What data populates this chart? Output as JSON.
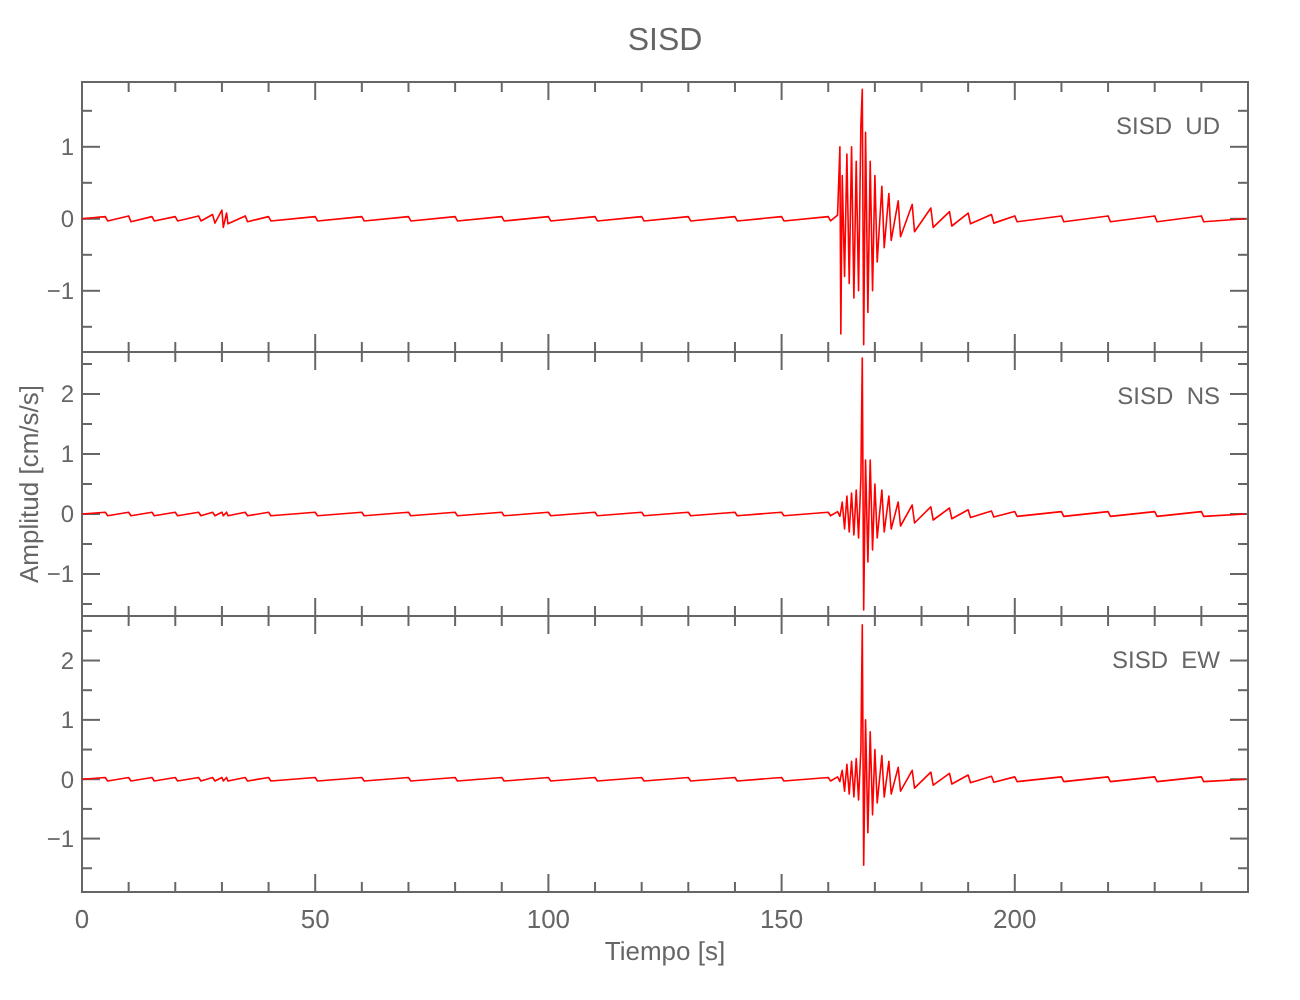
{
  "chart_data": [
    {
      "type": "line",
      "title": "SISD",
      "annotations": [
        "SISD  UD"
      ],
      "xlim": [
        0,
        250
      ],
      "ylim": [
        -1.85,
        1.9
      ],
      "tick_labels": "y",
      "xticks": [
        0,
        {
          "value": 10,
          "label": null
        },
        {
          "value": 20,
          "label": null
        },
        {
          "value": 30,
          "label": null
        },
        {
          "value": 40,
          "label": null
        },
        50,
        {
          "value": 60,
          "label": null
        },
        {
          "value": 70,
          "label": null
        },
        {
          "value": 80,
          "label": null
        },
        {
          "value": 90,
          "label": null
        },
        100,
        {
          "value": 110,
          "label": null
        },
        {
          "value": 120,
          "label": null
        },
        {
          "value": 130,
          "label": null
        },
        {
          "value": 140,
          "label": null
        },
        150,
        {
          "value": 160,
          "label": null
        },
        {
          "value": 170,
          "label": null
        },
        {
          "value": 180,
          "label": null
        },
        {
          "value": 190,
          "label": null
        },
        200,
        {
          "value": 210,
          "label": null
        },
        {
          "value": 220,
          "label": null
        },
        {
          "value": 230,
          "label": null
        },
        {
          "value": 240,
          "label": null
        }
      ],
      "yticks": [
        {
          "value": -1.5,
          "label": null
        },
        {
          "value": -1,
          "label": "−1"
        },
        {
          "value": -0.5,
          "label": null
        },
        0,
        {
          "value": 0.5,
          "label": null
        },
        1,
        {
          "value": 1.5,
          "label": null
        }
      ],
      "x": [
        0,
        5,
        5.5,
        10,
        10.5,
        15,
        15.5,
        20,
        20.5,
        25,
        25.5,
        28,
        28.5,
        30,
        30.3,
        31,
        31.3,
        35,
        35.5,
        40,
        40.5,
        50,
        50.5,
        60,
        60.5,
        70,
        70.5,
        80,
        80.5,
        90,
        90.5,
        100,
        100.5,
        110,
        110.5,
        120,
        120.5,
        130,
        130.5,
        140,
        140.5,
        150,
        150.5,
        160,
        160.5,
        162,
        162.5,
        162.7,
        163,
        163.5,
        164,
        164.5,
        165,
        165.5,
        166,
        166.5,
        167,
        167.3,
        167.6,
        168,
        168.5,
        169,
        169.5,
        170,
        170.5,
        171.5,
        172,
        173,
        173.5,
        175,
        175.5,
        178,
        178.5,
        182,
        182.5,
        186,
        186.5,
        190,
        190.5,
        195,
        195.5,
        200,
        200.5,
        210,
        210.5,
        220,
        220.5,
        230,
        230.5,
        240,
        240.5,
        249.5
      ],
      "series": [
        {
          "color": "#ff0000",
          "values": [
            0,
            0.03,
            -0.03,
            0.04,
            -0.04,
            0.03,
            -0.03,
            0.03,
            -0.03,
            0.04,
            -0.03,
            0.06,
            -0.06,
            0.12,
            -0.12,
            0.08,
            -0.07,
            0.04,
            -0.04,
            0.03,
            -0.03,
            0.03,
            -0.03,
            0.03,
            -0.03,
            0.03,
            -0.03,
            0.03,
            -0.03,
            0.03,
            -0.03,
            0.03,
            -0.03,
            0.03,
            -0.03,
            0.03,
            -0.03,
            0.03,
            -0.03,
            0.03,
            -0.03,
            0.03,
            -0.03,
            0.03,
            -0.03,
            0.05,
            1.0,
            -1.6,
            0.6,
            -0.8,
            0.9,
            -0.9,
            1.0,
            -1.1,
            0.8,
            -1.0,
            1.3,
            1.8,
            -1.75,
            1.2,
            -1.3,
            0.8,
            -1.0,
            0.6,
            -0.6,
            0.45,
            -0.4,
            0.35,
            -0.3,
            0.25,
            -0.25,
            0.2,
            -0.18,
            0.15,
            -0.12,
            0.1,
            -0.1,
            0.08,
            -0.07,
            0.06,
            -0.06,
            0.04,
            -0.04,
            0.04,
            -0.04,
            0.04,
            -0.04,
            0.04,
            -0.04,
            0.04,
            -0.04,
            0
          ]
        }
      ]
    },
    {
      "type": "line",
      "ylabel": "Amplitud [cm/s/s]",
      "annotations": [
        "SISD  NS"
      ],
      "xlim": [
        0,
        250
      ],
      "ylim": [
        -1.7,
        2.7
      ],
      "tick_labels": "y",
      "xticks": [
        0,
        {
          "value": 10,
          "label": null
        },
        {
          "value": 20,
          "label": null
        },
        {
          "value": 30,
          "label": null
        },
        {
          "value": 40,
          "label": null
        },
        50,
        {
          "value": 60,
          "label": null
        },
        {
          "value": 70,
          "label": null
        },
        {
          "value": 80,
          "label": null
        },
        {
          "value": 90,
          "label": null
        },
        100,
        {
          "value": 110,
          "label": null
        },
        {
          "value": 120,
          "label": null
        },
        {
          "value": 130,
          "label": null
        },
        {
          "value": 140,
          "label": null
        },
        150,
        {
          "value": 160,
          "label": null
        },
        {
          "value": 170,
          "label": null
        },
        {
          "value": 180,
          "label": null
        },
        {
          "value": 190,
          "label": null
        },
        200,
        {
          "value": 210,
          "label": null
        },
        {
          "value": 220,
          "label": null
        },
        {
          "value": 230,
          "label": null
        },
        {
          "value": 240,
          "label": null
        }
      ],
      "yticks": [
        {
          "value": -1.5,
          "label": null
        },
        {
          "value": -1,
          "label": "−1"
        },
        {
          "value": -0.5,
          "label": null
        },
        0,
        {
          "value": 0.5,
          "label": null
        },
        1,
        {
          "value": 1.5,
          "label": null
        },
        2,
        {
          "value": 2.5,
          "label": null
        }
      ],
      "x": [
        0,
        5,
        5.5,
        10,
        10.5,
        15,
        15.5,
        20,
        20.5,
        25,
        25.5,
        28,
        28.5,
        30,
        30.3,
        31,
        31.3,
        35,
        35.5,
        40,
        40.5,
        50,
        50.5,
        60,
        60.5,
        70,
        70.5,
        80,
        80.5,
        90,
        90.5,
        100,
        100.5,
        110,
        110.5,
        120,
        120.5,
        130,
        130.5,
        140,
        140.5,
        150,
        150.5,
        160,
        160.5,
        162,
        162.5,
        162.7,
        163,
        163.5,
        164,
        164.5,
        165,
        165.5,
        166,
        166.5,
        167,
        167.3,
        167.6,
        168,
        168.5,
        169,
        169.5,
        170,
        170.5,
        171.5,
        172,
        173,
        173.5,
        175,
        175.5,
        178,
        178.5,
        182,
        182.5,
        186,
        186.5,
        190,
        190.5,
        195,
        195.5,
        200,
        200.5,
        210,
        210.5,
        220,
        220.5,
        230,
        230.5,
        240,
        240.5,
        249.5
      ],
      "series": [
        {
          "color": "#ff0000",
          "values": [
            0,
            0.03,
            -0.03,
            0.03,
            -0.03,
            0.03,
            -0.03,
            0.03,
            -0.03,
            0.03,
            -0.03,
            0.03,
            -0.03,
            0.03,
            -0.03,
            0.03,
            -0.03,
            0.03,
            -0.03,
            0.03,
            -0.03,
            0.03,
            -0.03,
            0.03,
            -0.03,
            0.03,
            -0.03,
            0.03,
            -0.03,
            0.03,
            -0.03,
            0.03,
            -0.03,
            0.03,
            -0.03,
            0.03,
            -0.03,
            0.03,
            -0.03,
            0.03,
            -0.03,
            0.03,
            -0.03,
            0.03,
            -0.03,
            0.04,
            -0.04,
            0.05,
            0.2,
            -0.25,
            0.3,
            -0.3,
            0.35,
            -0.35,
            0.4,
            -0.4,
            0.6,
            2.6,
            -1.6,
            0.9,
            -0.8,
            0.9,
            -0.6,
            0.5,
            -0.4,
            0.4,
            -0.3,
            0.3,
            -0.25,
            0.2,
            -0.2,
            0.15,
            -0.15,
            0.12,
            -0.1,
            0.1,
            -0.08,
            0.07,
            -0.06,
            0.05,
            -0.05,
            0.04,
            -0.04,
            0.04,
            -0.04,
            0.04,
            -0.04,
            0.04,
            -0.04,
            0.04,
            -0.04,
            0
          ]
        }
      ]
    },
    {
      "type": "line",
      "xlabel": "Tiempo [s]",
      "annotations": [
        "SISD  EW"
      ],
      "xlim": [
        0,
        250
      ],
      "ylim": [
        -1.9,
        2.75
      ],
      "xticks": [
        0,
        {
          "value": 10,
          "label": null
        },
        {
          "value": 20,
          "label": null
        },
        {
          "value": 30,
          "label": null
        },
        {
          "value": 40,
          "label": null
        },
        50,
        {
          "value": 60,
          "label": null
        },
        {
          "value": 70,
          "label": null
        },
        {
          "value": 80,
          "label": null
        },
        {
          "value": 90,
          "label": null
        },
        100,
        {
          "value": 110,
          "label": null
        },
        {
          "value": 120,
          "label": null
        },
        {
          "value": 130,
          "label": null
        },
        {
          "value": 140,
          "label": null
        },
        150,
        {
          "value": 160,
          "label": null
        },
        {
          "value": 170,
          "label": null
        },
        {
          "value": 180,
          "label": null
        },
        {
          "value": 190,
          "label": null
        },
        200,
        {
          "value": 210,
          "label": null
        },
        {
          "value": 220,
          "label": null
        },
        {
          "value": 230,
          "label": null
        },
        {
          "value": 240,
          "label": null
        }
      ],
      "yticks": [
        {
          "value": -1.5,
          "label": null
        },
        {
          "value": -1,
          "label": "−1"
        },
        {
          "value": -0.5,
          "label": null
        },
        0,
        {
          "value": 0.5,
          "label": null
        },
        1,
        {
          "value": 1.5,
          "label": null
        },
        2,
        {
          "value": 2.5,
          "label": null
        }
      ],
      "x": [
        0,
        5,
        5.5,
        10,
        10.5,
        15,
        15.5,
        20,
        20.5,
        25,
        25.5,
        28,
        28.5,
        30,
        30.3,
        31,
        31.3,
        35,
        35.5,
        40,
        40.5,
        50,
        50.5,
        60,
        60.5,
        70,
        70.5,
        80,
        80.5,
        90,
        90.5,
        100,
        100.5,
        110,
        110.5,
        120,
        120.5,
        130,
        130.5,
        140,
        140.5,
        150,
        150.5,
        160,
        160.5,
        162,
        162.5,
        162.7,
        163,
        163.5,
        164,
        164.5,
        165,
        165.5,
        166,
        166.5,
        167,
        167.3,
        167.6,
        168,
        168.5,
        169,
        169.5,
        170,
        170.5,
        171.5,
        172,
        173,
        173.5,
        175,
        175.5,
        178,
        178.5,
        182,
        182.5,
        186,
        186.5,
        190,
        190.5,
        195,
        195.5,
        200,
        200.5,
        210,
        210.5,
        220,
        220.5,
        230,
        230.5,
        240,
        240.5,
        249.5
      ],
      "series": [
        {
          "color": "#ff0000",
          "values": [
            0,
            0.03,
            -0.03,
            0.03,
            -0.03,
            0.03,
            -0.03,
            0.03,
            -0.03,
            0.03,
            -0.03,
            0.03,
            -0.03,
            0.03,
            -0.03,
            0.03,
            -0.03,
            0.03,
            -0.03,
            0.03,
            -0.03,
            0.03,
            -0.03,
            0.03,
            -0.03,
            0.03,
            -0.03,
            0.03,
            -0.03,
            0.03,
            -0.03,
            0.03,
            -0.03,
            0.03,
            -0.03,
            0.03,
            -0.03,
            0.03,
            -0.03,
            0.03,
            -0.03,
            0.03,
            -0.03,
            0.03,
            -0.03,
            0.04,
            -0.04,
            0.05,
            0.15,
            -0.2,
            0.25,
            -0.25,
            0.3,
            -0.3,
            0.35,
            -0.35,
            0.5,
            2.6,
            -1.45,
            1.0,
            -0.9,
            0.8,
            -0.6,
            0.5,
            -0.4,
            0.4,
            -0.3,
            0.3,
            -0.25,
            0.2,
            -0.2,
            0.15,
            -0.15,
            0.12,
            -0.1,
            0.1,
            -0.08,
            0.07,
            -0.06,
            0.05,
            -0.05,
            0.04,
            -0.04,
            0.04,
            -0.04,
            0.04,
            -0.04,
            0.04,
            -0.04,
            0.04,
            -0.04,
            0
          ]
        }
      ]
    }
  ]
}
